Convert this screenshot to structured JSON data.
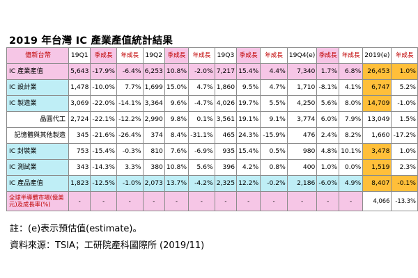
{
  "title": "2019 年台灣 IC 產業產值統計結果",
  "colors": {
    "pink": "#f6c6e6",
    "cyan": "#bfeef6",
    "yellow": "#ffff99",
    "orange": "#ffbf3a",
    "gray": "#e7e7e7",
    "white": "#ffffff",
    "border": "#8c8c8c",
    "red_text": "#c00000"
  },
  "header": {
    "row_label": "億新台幣",
    "cells": [
      "19Q1",
      "季成長",
      "年成長",
      "19Q2",
      "季成長",
      "年成長",
      "19Q3",
      "季成長",
      "年成長",
      "19Q4(e)",
      "季成長",
      "年成長",
      "2019(e)",
      "年成長"
    ]
  },
  "rows": [
    {
      "label": "IC 產業產值",
      "label_align": "left",
      "values": [
        "5,643",
        "-17.9%",
        "-6.4%",
        "6,253",
        "10.8%",
        "-2.0%",
        "7,217",
        "15.4%",
        "4.4%",
        "7,340",
        "1.7%",
        "6.8%",
        "26,453",
        "1.0%"
      ]
    },
    {
      "label": "IC 設計業",
      "label_align": "left",
      "values": [
        "1,478",
        "-10.0%",
        "7.7%",
        "1,699",
        "15.0%",
        "4.7%",
        "1,860",
        "9.5%",
        "4.7%",
        "1,710",
        "-8.1%",
        "4.1%",
        "6,747",
        "5.2%"
      ]
    },
    {
      "label": "IC 製造業",
      "label_align": "left",
      "values": [
        "3,069",
        "-22.0%",
        "-14.1%",
        "3,364",
        "9.6%",
        "-4.7%",
        "4,026",
        "19.7%",
        "5.5%",
        "4,250",
        "5.6%",
        "8.0%",
        "14,709",
        "-1.0%"
      ]
    },
    {
      "label": "晶圓代工",
      "label_align": "right",
      "values": [
        "2,724",
        "-22.1%",
        "-12.2%",
        "2,990",
        "9.8%",
        "0.1%",
        "3,561",
        "19.1%",
        "9.1%",
        "3,774",
        "6.0%",
        "7.9%",
        "13,049",
        "1.5%"
      ]
    },
    {
      "label": "記憶體與其他製造",
      "label_align": "right",
      "values": [
        "345",
        "-21.6%",
        "-26.4%",
        "374",
        "8.4%",
        "-31.1%",
        "465",
        "24.3%",
        "-15.9%",
        "476",
        "2.4%",
        "8.2%",
        "1,660",
        "-17.2%"
      ]
    },
    {
      "label": "IC 封裝業",
      "label_align": "left",
      "values": [
        "753",
        "-15.4%",
        "-0.3%",
        "810",
        "7.6%",
        "-6.9%",
        "935",
        "15.4%",
        "0.5%",
        "980",
        "4.8%",
        "10.1%",
        "3,478",
        "1.0%"
      ]
    },
    {
      "label": "IC 測試業",
      "label_align": "left",
      "values": [
        "343",
        "-14.3%",
        "3.3%",
        "380",
        "10.8%",
        "5.6%",
        "396",
        "4.2%",
        "0.8%",
        "400",
        "1.0%",
        "0.0%",
        "1,519",
        "2.3%"
      ]
    },
    {
      "label": "IC 產品產值",
      "label_align": "left",
      "values": [
        "1,823",
        "-12.5%",
        "-1.0%",
        "2,073",
        "13.7%",
        "-4.2%",
        "2,325",
        "12.2%",
        "-0.2%",
        "2,186",
        "-6.0%",
        "4.9%",
        "8,407",
        "-0.1%"
      ]
    },
    {
      "label": "全球半導體市場(億美元)及成長率(%)",
      "label_align": "left",
      "values": [
        "-",
        "-",
        "-",
        "-",
        "-",
        "-",
        "-",
        "-",
        "-",
        "-",
        "-",
        "-",
        "4,066",
        "-13.3%"
      ]
    }
  ],
  "notes": {
    "line1": "註：(e)表示預估值(estimate)。",
    "line2": "資料來源：TSIA；工研院產科國際所 (2019/11)"
  }
}
